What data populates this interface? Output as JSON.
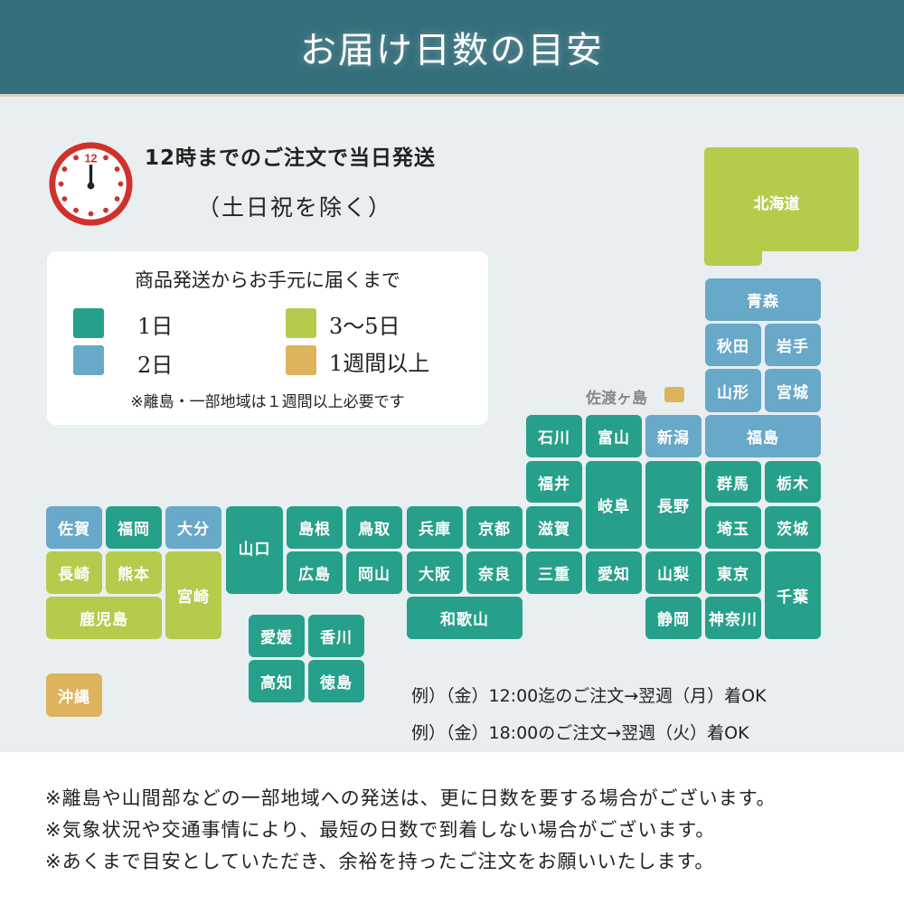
{
  "header": {
    "title": "お届け日数の目安"
  },
  "lead": {
    "line1": "12時までのご注文で当日発送",
    "line2": "（土日祝を除く）",
    "clock_icon_number": "12"
  },
  "legend": {
    "title": "商品発送からお手元に届くまで",
    "items": [
      {
        "label": "1日",
        "level": "1"
      },
      {
        "label": "2日",
        "level": "2"
      },
      {
        "label": "3～5日",
        "level": "3"
      },
      {
        "label": "1週間以上",
        "level": "4"
      }
    ],
    "note": "※離島・一部地域は１週間以上必要です"
  },
  "colors": {
    "1": "#26a08a",
    "2": "#68a8c8",
    "3": "#b5cb4c",
    "4": "#ddb45c",
    "header": "#366f7c",
    "clock": "#d0312d"
  },
  "map": {
    "sado": {
      "name": "佐渡ヶ島",
      "level": "4"
    },
    "tiles": [
      {
        "name": "北海道",
        "level": "3"
      },
      {
        "name": "青森",
        "level": "2"
      },
      {
        "name": "秋田",
        "level": "2"
      },
      {
        "name": "岩手",
        "level": "2"
      },
      {
        "name": "山形",
        "level": "2"
      },
      {
        "name": "宮城",
        "level": "2"
      },
      {
        "name": "福島",
        "level": "2"
      },
      {
        "name": "石川",
        "level": "1"
      },
      {
        "name": "富山",
        "level": "1"
      },
      {
        "name": "新潟",
        "level": "2"
      },
      {
        "name": "福井",
        "level": "1"
      },
      {
        "name": "岐阜",
        "level": "1"
      },
      {
        "name": "長野",
        "level": "1"
      },
      {
        "name": "群馬",
        "level": "1"
      },
      {
        "name": "栃木",
        "level": "1"
      },
      {
        "name": "滋賀",
        "level": "1"
      },
      {
        "name": "埼玉",
        "level": "1"
      },
      {
        "name": "茨城",
        "level": "1"
      },
      {
        "name": "三重",
        "level": "1"
      },
      {
        "name": "愛知",
        "level": "1"
      },
      {
        "name": "山梨",
        "level": "1"
      },
      {
        "name": "東京",
        "level": "1"
      },
      {
        "name": "千葉",
        "level": "1"
      },
      {
        "name": "静岡",
        "level": "1"
      },
      {
        "name": "神奈川",
        "level": "1"
      },
      {
        "name": "兵庫",
        "level": "1"
      },
      {
        "name": "京都",
        "level": "1"
      },
      {
        "name": "大阪",
        "level": "1"
      },
      {
        "name": "奈良",
        "level": "1"
      },
      {
        "name": "和歌山",
        "level": "1"
      },
      {
        "name": "島根",
        "level": "1"
      },
      {
        "name": "鳥取",
        "level": "1"
      },
      {
        "name": "広島",
        "level": "1"
      },
      {
        "name": "岡山",
        "level": "1"
      },
      {
        "name": "山口",
        "level": "1"
      },
      {
        "name": "愛媛",
        "level": "1"
      },
      {
        "name": "香川",
        "level": "1"
      },
      {
        "name": "高知",
        "level": "1"
      },
      {
        "name": "徳島",
        "level": "1"
      },
      {
        "name": "佐賀",
        "level": "2"
      },
      {
        "name": "福岡",
        "level": "1"
      },
      {
        "name": "大分",
        "level": "2"
      },
      {
        "name": "長崎",
        "level": "3"
      },
      {
        "name": "熊本",
        "level": "3"
      },
      {
        "name": "宮崎",
        "level": "3"
      },
      {
        "name": "鹿児島",
        "level": "3"
      },
      {
        "name": "沖縄",
        "level": "4"
      }
    ]
  },
  "examples": [
    "例）（金）12:00迄のご注文→翌週（月）着OK",
    "例）（金）18:00のご注文→翌週（火）着OK"
  ],
  "footer": {
    "notes": [
      "※離島や山間部などの一部地域への発送は、更に日数を要する場合がございます。",
      "※気象状況や交通事情により、最短の日数で到着しない場合がございます。",
      "※あくまで目安としていただき、余裕を持ったご注文をお願いいたします。"
    ]
  }
}
